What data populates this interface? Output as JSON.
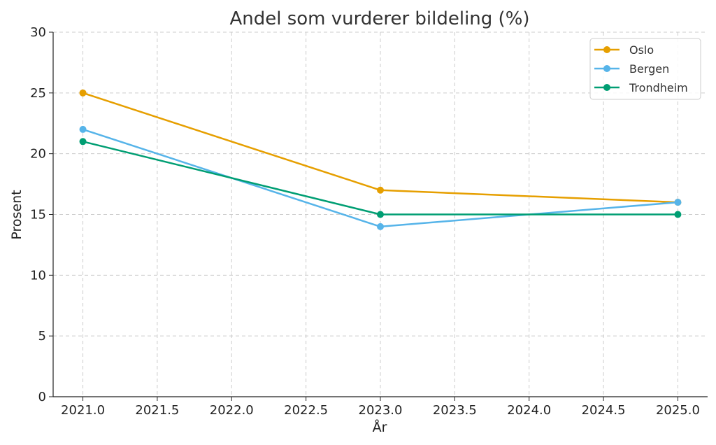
{
  "chart_data": {
    "type": "line",
    "title": "Andel som vurderer bildeling (%)",
    "xlabel": "År",
    "ylabel": "Prosent",
    "x": [
      2021,
      2023,
      2025
    ],
    "series": [
      {
        "name": "Oslo",
        "color": "#E69F00",
        "values": [
          25,
          17,
          16
        ]
      },
      {
        "name": "Bergen",
        "color": "#56B4E9",
        "values": [
          22,
          14,
          16
        ]
      },
      {
        "name": "Trondheim",
        "color": "#009E73",
        "values": [
          21,
          15,
          15
        ]
      }
    ],
    "xlim": [
      2020.8,
      2025.2
    ],
    "ylim": [
      0,
      30
    ],
    "xticks": [
      "2021.0",
      "2021.5",
      "2022.0",
      "2022.5",
      "2023.0",
      "2023.5",
      "2024.0",
      "2024.5",
      "2025.0"
    ],
    "yticks": [
      "0",
      "5",
      "10",
      "15",
      "20",
      "25",
      "30"
    ],
    "grid": true,
    "legend_position": "top-right"
  }
}
